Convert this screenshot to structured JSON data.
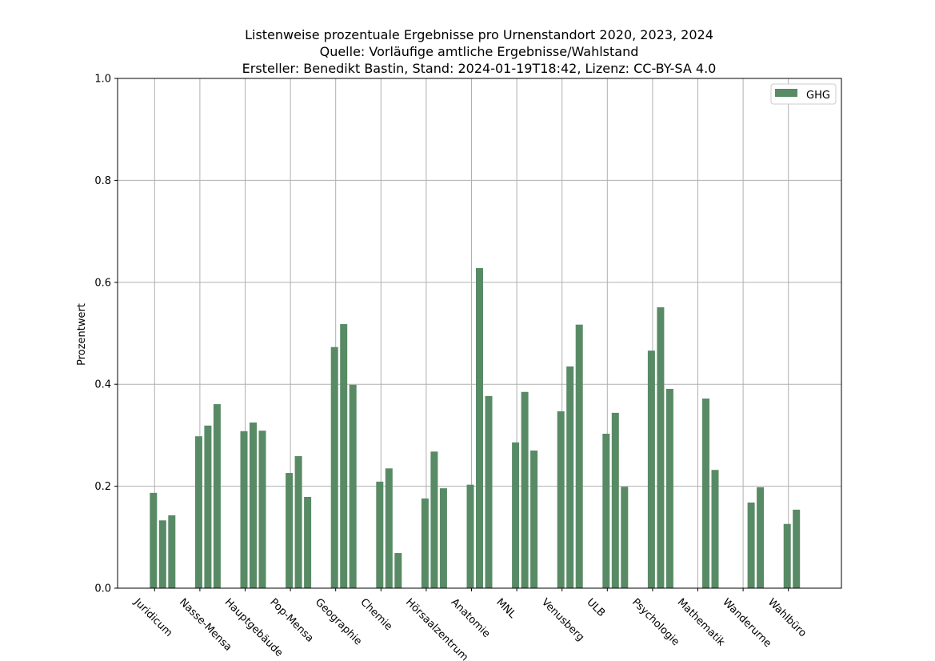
{
  "chart_data": {
    "type": "bar",
    "title": [
      "Listenweise prozentuale Ergebnisse pro Urnenstandort 2020, 2023, 2024",
      "Quelle: Vorläufige amtliche Ergebnisse/Wahlstand",
      "Ersteller: Benedikt Bastin, Stand: 2024-01-19T18:42, Lizenz: CC-BY-SA 4.0"
    ],
    "xlabel": "",
    "ylabel": "Prozentwert",
    "ylim": [
      0,
      1.0
    ],
    "yticks": [
      "0.0",
      "0.2",
      "0.4",
      "0.6",
      "0.8",
      "1.0"
    ],
    "grid": true,
    "legend_position": "top-right",
    "categories": [
      "Juridicum",
      "Nasse-Mensa",
      "Hauptgebäude",
      "Pop-Mensa",
      "Geographie",
      "Chemie",
      "Hörsaalzentrum",
      "Anatomie",
      "MNL",
      "Venusberg",
      "ULB",
      "Psychologie",
      "Mathematik",
      "Wanderurne",
      "Wahlbüro"
    ],
    "series": [
      {
        "name": "GHG",
        "color": "#588b65",
        "values": [
          [
            0.187,
            0.133,
            0.143
          ],
          [
            0.298,
            0.319,
            0.361
          ],
          [
            0.308,
            0.325,
            0.309
          ],
          [
            0.226,
            0.259,
            0.179
          ],
          [
            0.473,
            0.518,
            0.399
          ],
          [
            0.209,
            0.235,
            0.069
          ],
          [
            0.176,
            0.268,
            0.196
          ],
          [
            0.203,
            0.628,
            0.377
          ],
          [
            0.286,
            0.385,
            0.27
          ],
          [
            0.347,
            0.435,
            0.517
          ],
          [
            0.303,
            0.344,
            0.199
          ],
          [
            0.466,
            0.551,
            0.391
          ],
          [
            null,
            0.372,
            0.232
          ],
          [
            null,
            0.168,
            0.198
          ],
          [
            0.126,
            0.154,
            null
          ]
        ]
      }
    ]
  }
}
